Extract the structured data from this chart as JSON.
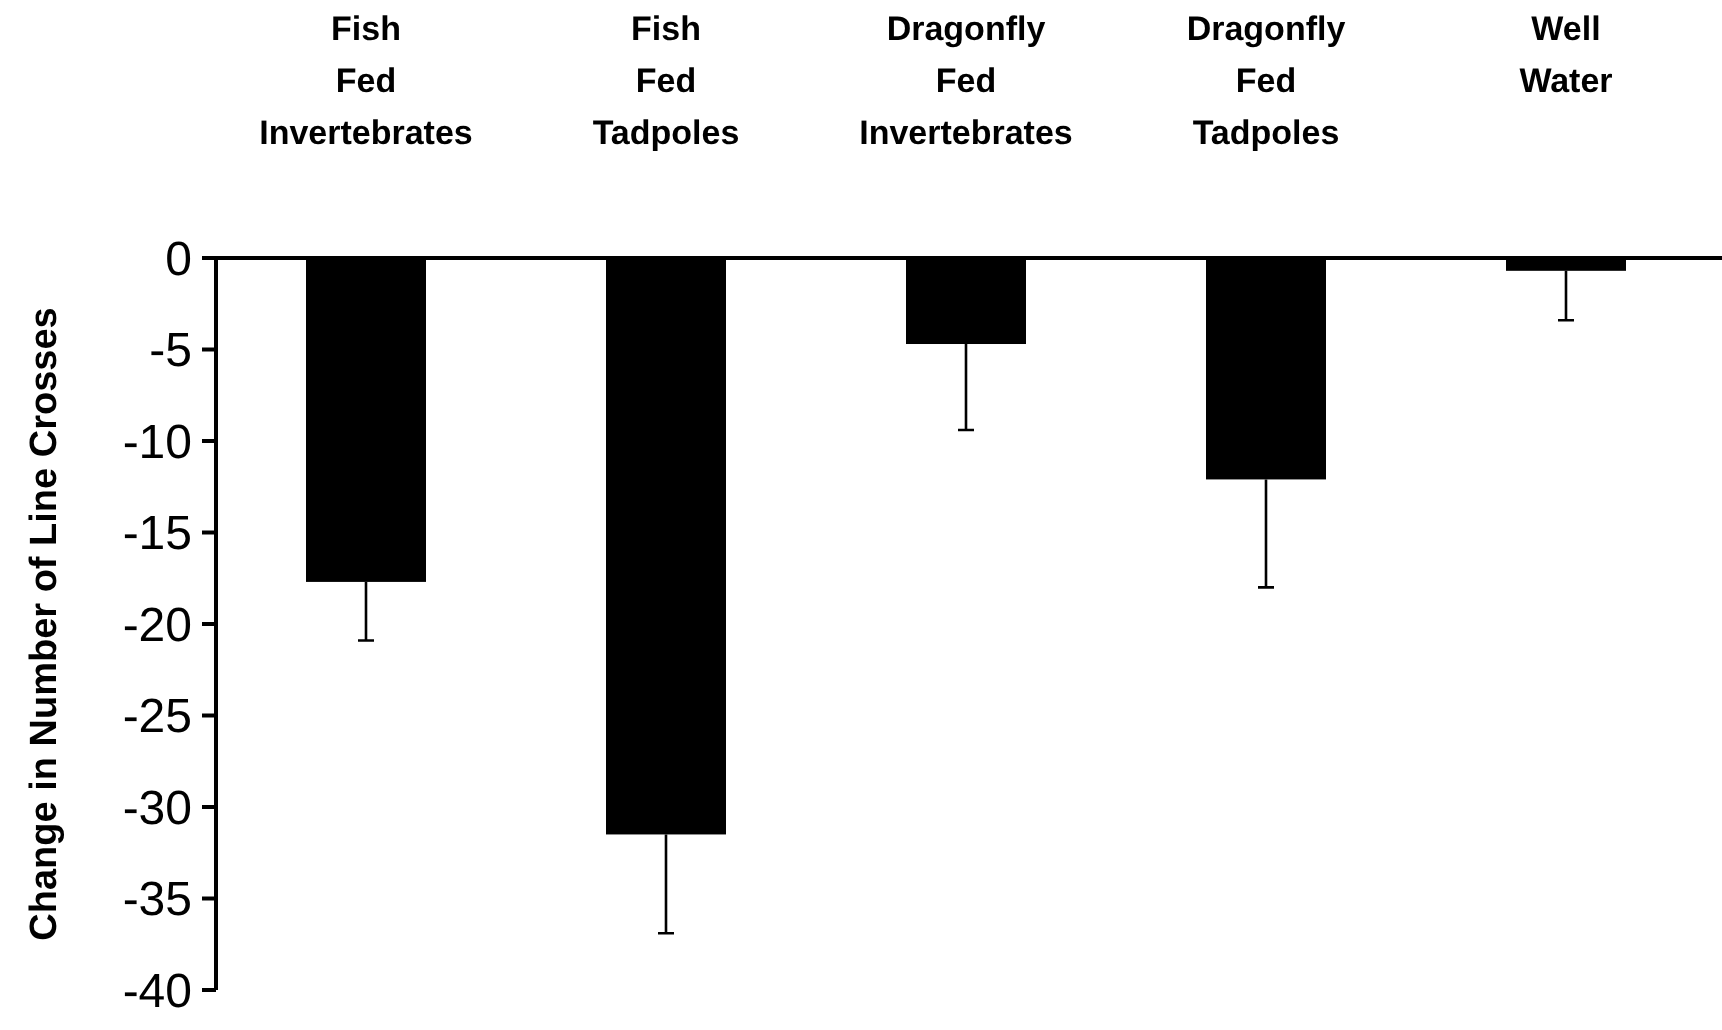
{
  "chart_data": {
    "type": "bar",
    "ylabel": "Change in Number of Line Crosses",
    "categories": [
      "Fish Fed Invertebrates",
      "Fish Fed Tadpoles",
      "Dragonfly Fed Invertebrates",
      "Dragonfly Fed Tadpoles",
      "Well Water"
    ],
    "values": [
      -17.7,
      -31.5,
      -4.7,
      -12.1,
      -0.7
    ],
    "errors": [
      [
        -20.9,
        -17.7
      ],
      [
        -36.9,
        -31.5
      ],
      [
        -9.4,
        -4.7
      ],
      [
        -18.0,
        -12.1
      ],
      [
        -3.4,
        -0.7
      ]
    ],
    "color": "#000000",
    "ylim": [
      -40,
      0
    ],
    "yticks": [
      0,
      -5,
      -10,
      -15,
      -20,
      -25,
      -30,
      -35,
      -40
    ],
    "grid": false
  }
}
